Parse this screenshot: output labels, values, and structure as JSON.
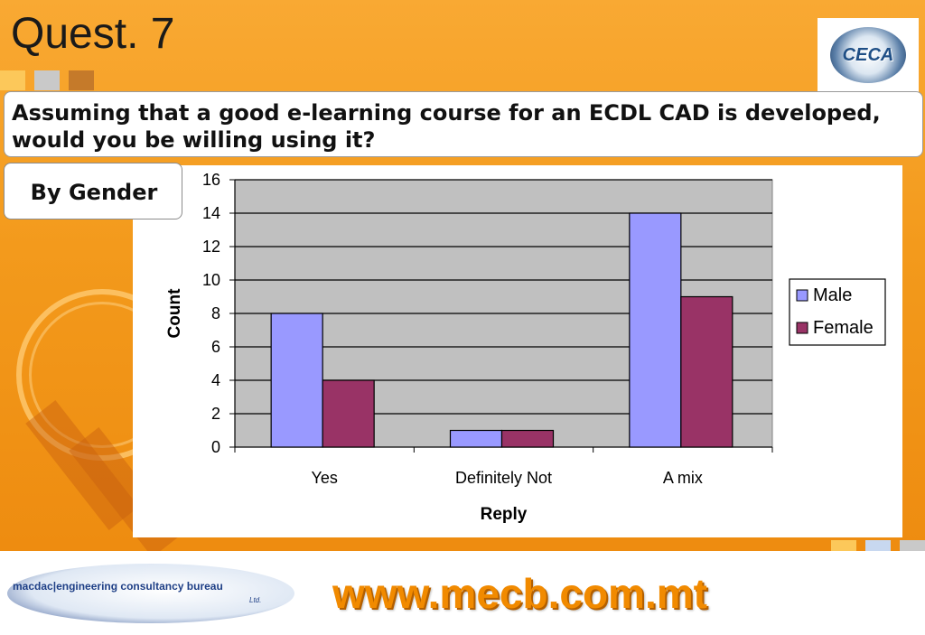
{
  "slide": {
    "title": "Quest. 7",
    "question": "Assuming that a good e-learning course for an ECDL CAD is developed, would you be willing using it?",
    "subgroup_label": "By Gender",
    "logo_ceca": "CECA",
    "footer_url": "www.mecb.com.mt",
    "company_logo": {
      "name_parts": [
        "macdac",
        "engineering",
        "consultancy",
        "bureau"
      ],
      "suffix": "Ltd."
    }
  },
  "colors": {
    "background": "#f39a1c",
    "plot_area": "#c0c0c0",
    "male": "#9999ff",
    "female": "#993366",
    "url": "#f18a00"
  },
  "chart_data": {
    "type": "bar",
    "title": "",
    "xlabel": "Reply",
    "ylabel": "Count",
    "categories": [
      "Yes",
      "Definitely Not",
      "A mix"
    ],
    "series": [
      {
        "name": "Male",
        "values": [
          8,
          1,
          14
        ]
      },
      {
        "name": "Female",
        "values": [
          4,
          1,
          9
        ]
      }
    ],
    "ylim": [
      0,
      16
    ],
    "yticks": [
      0,
      2,
      4,
      6,
      8,
      10,
      12,
      14,
      16
    ],
    "grid": true,
    "legend_position": "right"
  }
}
